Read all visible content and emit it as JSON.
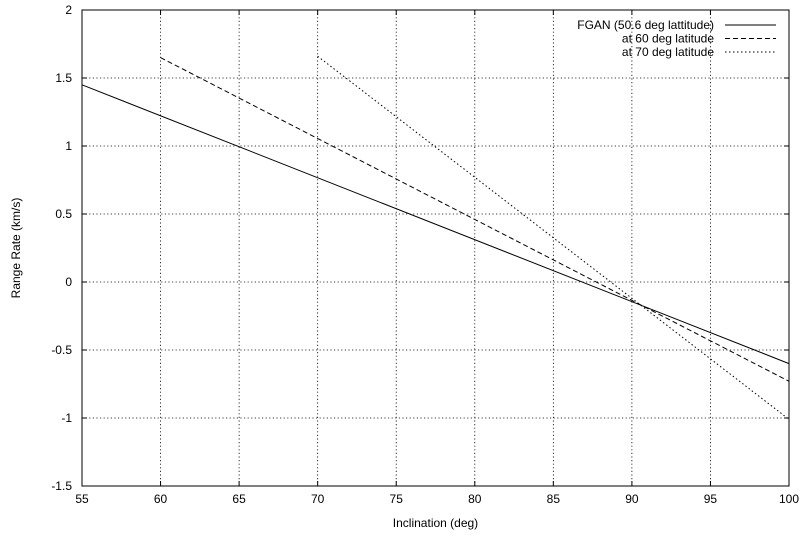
{
  "chart_data": {
    "type": "line",
    "title": "",
    "xlabel": "Inclination (deg)",
    "ylabel": "Range Rate (km/s)",
    "xlim": [
      55,
      100
    ],
    "ylim": [
      -1.5,
      2
    ],
    "xticks": [
      55,
      60,
      65,
      70,
      75,
      80,
      85,
      90,
      95,
      100
    ],
    "xtick_labels": [
      "55",
      "60",
      "65",
      "70",
      "75",
      "80",
      "85",
      "90",
      "95",
      "100"
    ],
    "yticks": [
      -1.5,
      -1,
      -0.5,
      0,
      0.5,
      1,
      1.5,
      2
    ],
    "ytick_labels": [
      "-1.5",
      "-1",
      "-0.5",
      "0",
      "0.5",
      "1",
      "1.5",
      "2"
    ],
    "grid": true,
    "legend_position": "top-right",
    "series": [
      {
        "name": "FGAN (50.6 deg lattitude)",
        "style": "solid",
        "x": [
          55,
          100
        ],
        "y": [
          1.45,
          -0.6
        ]
      },
      {
        "name": "at 60 deg latitude",
        "style": "dashed",
        "x": [
          60,
          100
        ],
        "y": [
          1.65,
          -0.73
        ]
      },
      {
        "name": "at 70 deg latitude",
        "style": "dotted",
        "x": [
          70,
          100
        ],
        "y": [
          1.66,
          -1.01
        ]
      }
    ]
  }
}
